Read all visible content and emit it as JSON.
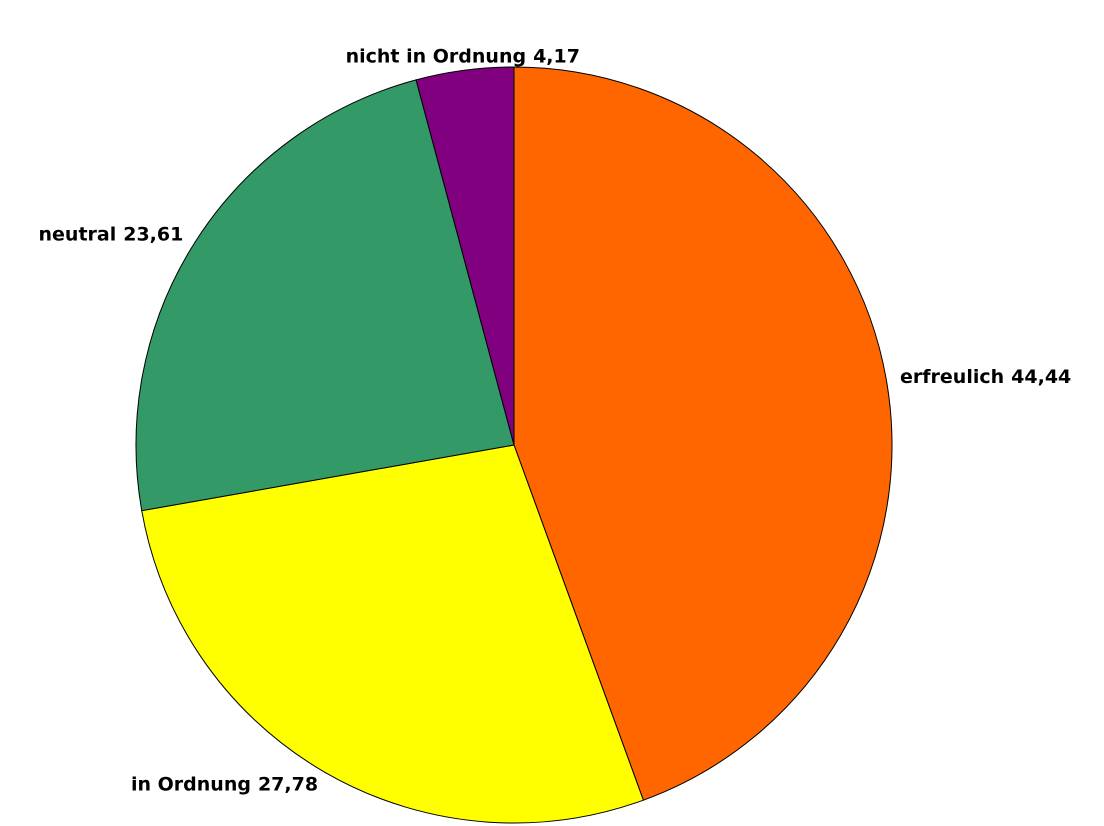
{
  "chart_data": {
    "type": "pie",
    "categories": [
      "erfreulich",
      "in Ordnung",
      "neutral",
      "nicht in Ordnung"
    ],
    "values": [
      44.44,
      27.78,
      23.61,
      4.17
    ],
    "value_labels": [
      "44,44",
      "27,78",
      "23,61",
      "4,17"
    ],
    "colors": [
      "#ff6600",
      "#ffff00",
      "#339966",
      "#800080"
    ]
  }
}
